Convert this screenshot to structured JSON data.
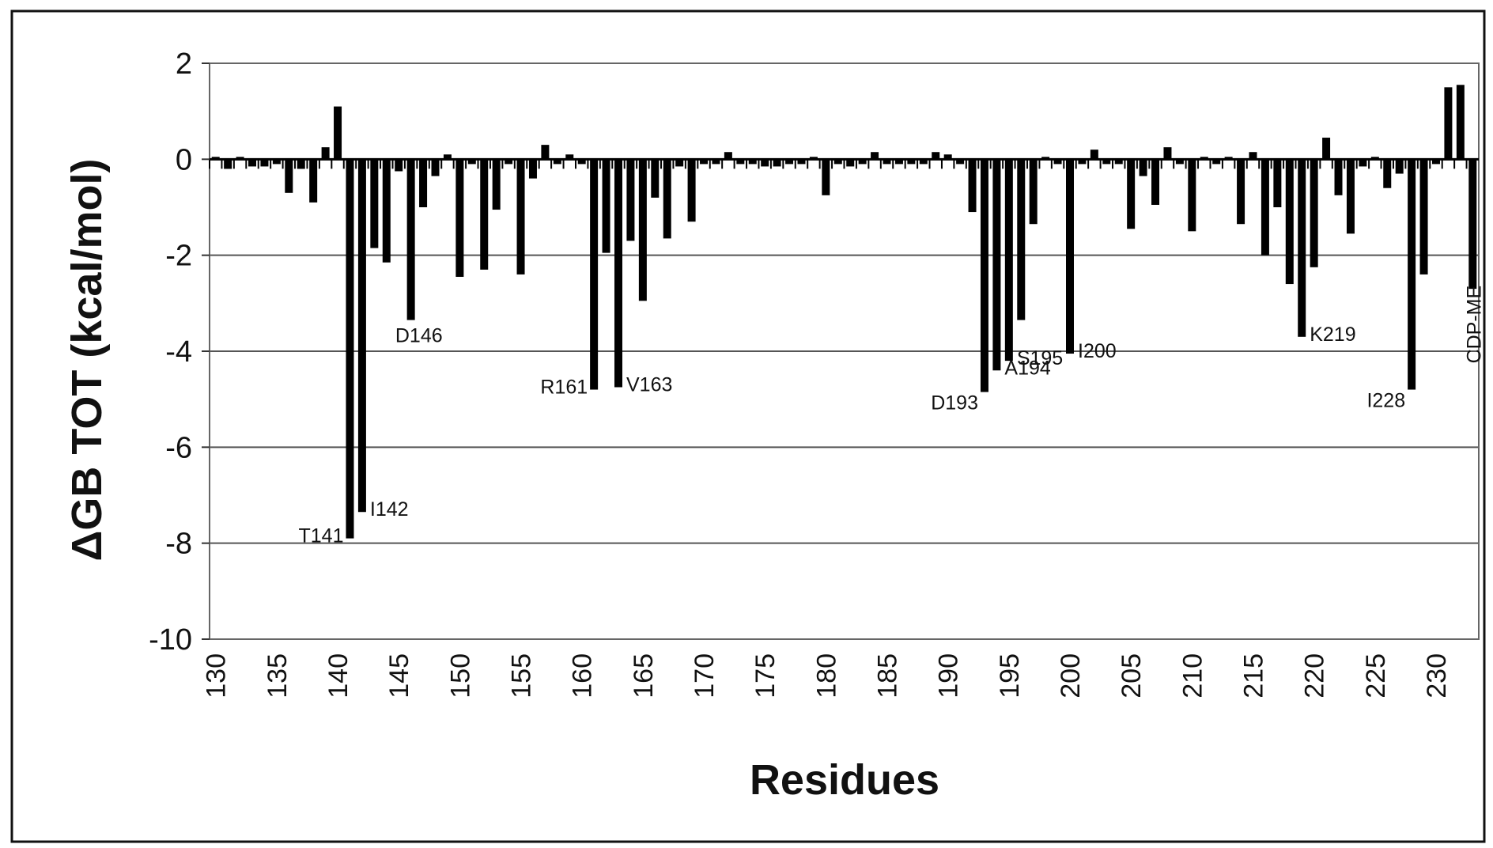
{
  "chart_data": {
    "type": "bar",
    "title": "",
    "xlabel": "Residues",
    "ylabel": "ΔGB TOT (kcal/mol)",
    "ylim": [
      -10,
      2
    ],
    "yticks": [
      2,
      0,
      -2,
      -4,
      -6,
      -8,
      -10
    ],
    "yticks_text": [
      "2",
      "0",
      "-2",
      "-4",
      "-6",
      "-8",
      "-10"
    ],
    "xlim": [
      130,
      234
    ],
    "xticks": [
      130,
      135,
      140,
      145,
      150,
      155,
      160,
      165,
      170,
      175,
      180,
      185,
      190,
      195,
      200,
      205,
      210,
      215,
      220,
      225,
      230
    ],
    "xticks_text": [
      "130",
      "135",
      "140",
      "145",
      "150",
      "155",
      "160",
      "165",
      "170",
      "175",
      "180",
      "185",
      "190",
      "195",
      "200",
      "205",
      "210",
      "215",
      "220",
      "225",
      "230"
    ],
    "grid": true,
    "legend": "none",
    "bar_color": "#000000",
    "x": [
      130,
      131,
      132,
      133,
      134,
      135,
      136,
      137,
      138,
      139,
      140,
      141,
      142,
      143,
      144,
      145,
      146,
      147,
      148,
      149,
      150,
      151,
      152,
      153,
      154,
      155,
      156,
      157,
      158,
      159,
      160,
      161,
      162,
      163,
      164,
      165,
      166,
      167,
      168,
      169,
      170,
      171,
      172,
      173,
      174,
      175,
      176,
      177,
      178,
      179,
      180,
      181,
      182,
      183,
      184,
      185,
      186,
      187,
      188,
      189,
      190,
      191,
      192,
      193,
      194,
      195,
      196,
      197,
      198,
      199,
      200,
      201,
      202,
      203,
      204,
      205,
      206,
      207,
      208,
      209,
      210,
      211,
      212,
      213,
      214,
      215,
      216,
      217,
      218,
      219,
      220,
      221,
      222,
      223,
      224,
      225,
      226,
      227,
      228,
      229,
      230,
      231,
      232,
      233
    ],
    "values": [
      0.05,
      -0.2,
      0.05,
      -0.15,
      -0.15,
      -0.1,
      -0.7,
      -0.2,
      -0.9,
      0.25,
      1.1,
      -7.9,
      -7.35,
      -1.85,
      -2.15,
      -0.25,
      -3.35,
      -1.0,
      -0.35,
      0.1,
      -2.45,
      -0.1,
      -2.3,
      -1.05,
      -0.1,
      -2.4,
      -0.4,
      0.3,
      -0.1,
      0.1,
      -0.1,
      -4.8,
      -1.95,
      -4.75,
      -1.7,
      -2.95,
      -0.8,
      -1.65,
      -0.15,
      -1.3,
      -0.1,
      -0.1,
      0.15,
      -0.1,
      -0.1,
      -0.15,
      -0.15,
      -0.1,
      -0.1,
      0.05,
      -0.75,
      -0.1,
      -0.15,
      -0.1,
      0.15,
      -0.1,
      -0.1,
      -0.1,
      -0.1,
      0.15,
      0.1,
      -0.1,
      -1.1,
      -4.85,
      -4.4,
      -4.2,
      -3.35,
      -1.35,
      0.05,
      -0.1,
      -4.05,
      -0.1,
      0.2,
      -0.1,
      -0.1,
      -1.45,
      -0.35,
      -0.95,
      0.25,
      -0.1,
      -1.5,
      0.05,
      -0.1,
      0.05,
      -1.35,
      0.15,
      -2.0,
      -1.0,
      -2.6,
      -3.7,
      -2.25,
      0.45,
      -0.75,
      -1.55,
      -0.15,
      0.05,
      -0.6,
      -0.3,
      -4.8,
      -2.4,
      -0.1,
      1.5,
      1.55,
      -2.7
    ],
    "annotations": [
      {
        "x": 141,
        "text": "T141"
      },
      {
        "x": 142,
        "text": "I142"
      },
      {
        "x": 146,
        "text": "D146"
      },
      {
        "x": 161,
        "text": "R161"
      },
      {
        "x": 163,
        "text": "V163"
      },
      {
        "x": 193,
        "text": "D193"
      },
      {
        "x": 194,
        "text": "A194"
      },
      {
        "x": 195,
        "text": "S195"
      },
      {
        "x": 200,
        "text": "I200"
      },
      {
        "x": 219,
        "text": "K219"
      },
      {
        "x": 228,
        "text": "I228"
      },
      {
        "x": 233,
        "text": "CDP-ME"
      }
    ]
  }
}
